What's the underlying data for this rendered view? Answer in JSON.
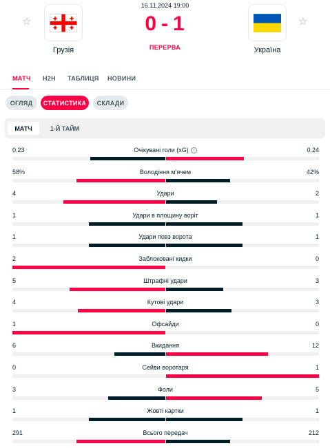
{
  "match": {
    "datetime": "16.11.2024 19:00",
    "status": "ПЕРЕРВА",
    "home": {
      "name": "Грузія",
      "score": "0"
    },
    "away": {
      "name": "Україна",
      "score": "1"
    },
    "score_separator": "-"
  },
  "tabs": [
    {
      "label": "МАТЧ",
      "active": true
    },
    {
      "label": "H2H",
      "active": false
    },
    {
      "label": "ТАБЛИЦЯ",
      "active": false
    },
    {
      "label": "НОВИНИ",
      "active": false
    }
  ],
  "pills": [
    {
      "label": "ОГЛЯД",
      "active": false
    },
    {
      "label": "СТАТИСТИКА",
      "active": true
    },
    {
      "label": "СКЛАДИ",
      "active": false
    }
  ],
  "subtabs": [
    {
      "label": "МАТЧ",
      "active": true
    },
    {
      "label": "1-Й ТАЙМ",
      "active": false
    }
  ],
  "colors": {
    "accent": "#ff0046",
    "dark": "#001e28",
    "track": "#eef0f1"
  },
  "stats": [
    {
      "label": "Очікувані голи (xG)",
      "home": "0.23",
      "away": "0.24",
      "home_share": 0.49,
      "away_share": 0.51,
      "leader": "away",
      "info_icon": true
    },
    {
      "label": "Володіння м'ячем",
      "home": "58%",
      "away": "42%",
      "home_share": 0.58,
      "away_share": 0.42,
      "leader": "home",
      "info_icon": false
    },
    {
      "label": "Удари",
      "home": "4",
      "away": "2",
      "home_share": 0.667,
      "away_share": 0.333,
      "leader": "home",
      "info_icon": false
    },
    {
      "label": "Удари в площину воріт",
      "home": "1",
      "away": "1",
      "home_share": 0.5,
      "away_share": 0.5,
      "leader": "none",
      "info_icon": false
    },
    {
      "label": "Удари повз ворота",
      "home": "1",
      "away": "1",
      "home_share": 0.5,
      "away_share": 0.5,
      "leader": "none",
      "info_icon": false
    },
    {
      "label": "Заблоковані кидки",
      "home": "2",
      "away": "0",
      "home_share": 1.0,
      "away_share": 0.0,
      "leader": "home",
      "info_icon": false
    },
    {
      "label": "Штрафні удари",
      "home": "5",
      "away": "3",
      "home_share": 0.625,
      "away_share": 0.375,
      "leader": "home",
      "info_icon": false
    },
    {
      "label": "Кутові удари",
      "home": "4",
      "away": "3",
      "home_share": 0.571,
      "away_share": 0.429,
      "leader": "home",
      "info_icon": false
    },
    {
      "label": "Офсайди",
      "home": "1",
      "away": "0",
      "home_share": 1.0,
      "away_share": 0.0,
      "leader": "home",
      "info_icon": false
    },
    {
      "label": "Вкидання",
      "home": "6",
      "away": "12",
      "home_share": 0.333,
      "away_share": 0.667,
      "leader": "away",
      "info_icon": false
    },
    {
      "label": "Сейви воротаря",
      "home": "0",
      "away": "1",
      "home_share": 0.0,
      "away_share": 1.0,
      "leader": "away",
      "info_icon": false
    },
    {
      "label": "Фоли",
      "home": "3",
      "away": "5",
      "home_share": 0.375,
      "away_share": 0.625,
      "leader": "away",
      "info_icon": false
    },
    {
      "label": "Жовті картки",
      "home": "1",
      "away": "1",
      "home_share": 0.5,
      "away_share": 0.5,
      "leader": "none",
      "info_icon": false
    },
    {
      "label": "Всього передач",
      "home": "291",
      "away": "212",
      "home_share": 0.579,
      "away_share": 0.421,
      "leader": "home",
      "info_icon": false
    }
  ]
}
